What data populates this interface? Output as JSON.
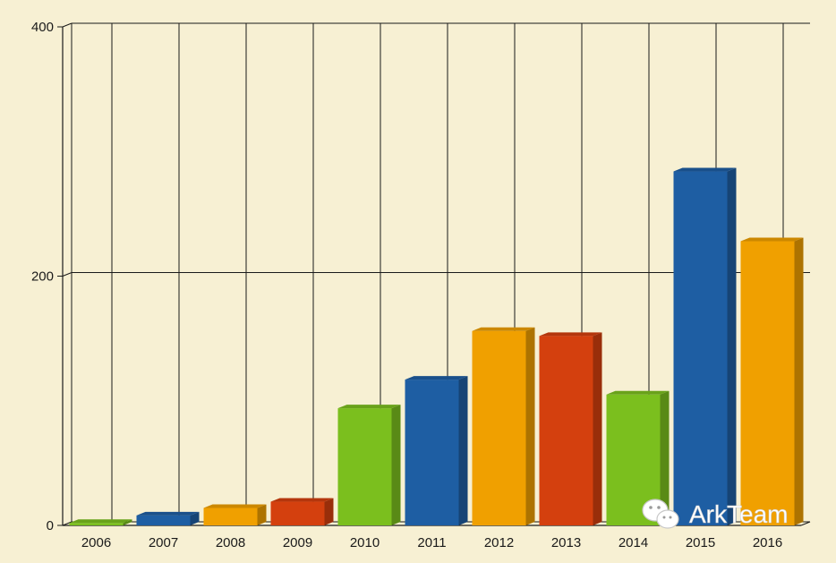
{
  "chart_data": {
    "type": "bar",
    "categories": [
      "2006",
      "2007",
      "2008",
      "2009",
      "2010",
      "2011",
      "2012",
      "2013",
      "2014",
      "2015",
      "2016"
    ],
    "values": [
      2,
      8,
      14,
      19,
      94,
      117,
      156,
      152,
      105,
      284,
      228
    ],
    "bar_colors": [
      "#7bbf1e",
      "#1e5ea3",
      "#f0a000",
      "#d4400e",
      "#7bbf1e",
      "#1e5ea3",
      "#f0a000",
      "#d4400e",
      "#7bbf1e",
      "#1e5ea3",
      "#f0a000"
    ],
    "y_ticks": [
      "0",
      "200",
      "400"
    ],
    "ylim": [
      0,
      400
    ],
    "grid": true,
    "style": "3d-bar",
    "title": "",
    "xlabel": "",
    "ylabel": ""
  },
  "watermark": {
    "text": "ArkTeam",
    "icon": "wechat-icon"
  },
  "colors": {
    "background": "#f7f0d3",
    "gridline": "#1a1a1a"
  }
}
